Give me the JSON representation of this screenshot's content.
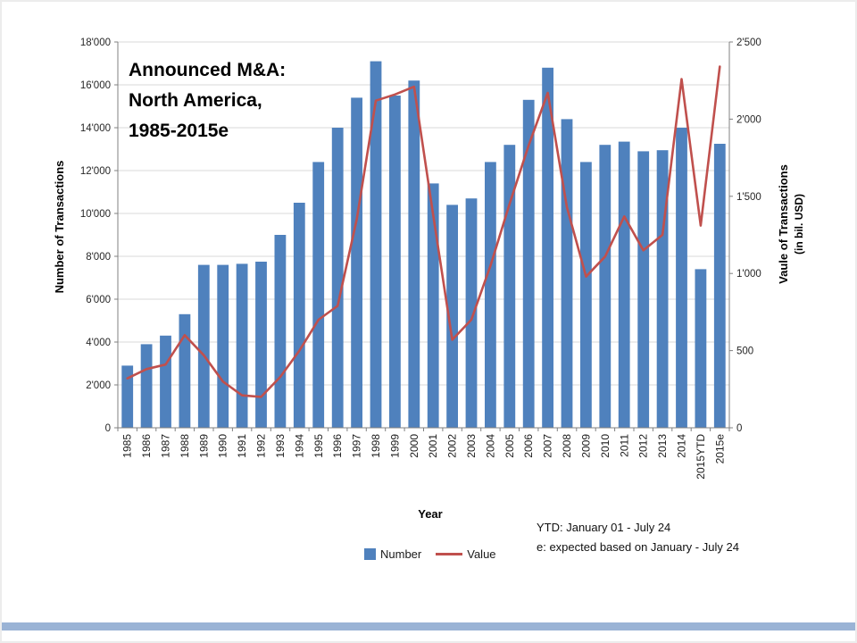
{
  "slide": {
    "background": "#ffffff",
    "accent_color": "#9ab3d5"
  },
  "chart_data": {
    "type": "bar+line combo",
    "title_lines": [
      "Announced M&A:",
      "North America,",
      "1985-2015e"
    ],
    "categories": [
      "1985",
      "1986",
      "1987",
      "1988",
      "1989",
      "1990",
      "1991",
      "1992",
      "1993",
      "1994",
      "1995",
      "1996",
      "1997",
      "1998",
      "1999",
      "2000",
      "2001",
      "2002",
      "2003",
      "2004",
      "2005",
      "2006",
      "2007",
      "2008",
      "2009",
      "2010",
      "2011",
      "2012",
      "2013",
      "2014",
      "2015YTD",
      "2015e"
    ],
    "series": [
      {
        "name": "Number",
        "type": "bar",
        "axis": "left",
        "color": "#4F81BD",
        "values": [
          2900,
          3900,
          4300,
          5300,
          7600,
          7600,
          7650,
          7750,
          9000,
          10500,
          12400,
          14000,
          15400,
          17100,
          15500,
          16200,
          11400,
          10400,
          10700,
          12400,
          13200,
          15300,
          16800,
          14400,
          12400,
          13200,
          13350,
          12900,
          12950,
          14000,
          7400,
          13250
        ]
      },
      {
        "name": "Value",
        "type": "line",
        "axis": "right",
        "color": "#C0504D",
        "values": [
          320,
          380,
          410,
          600,
          470,
          300,
          210,
          200,
          330,
          500,
          700,
          790,
          1350,
          2120,
          2160,
          2210,
          1380,
          570,
          700,
          1050,
          1450,
          1830,
          2170,
          1430,
          980,
          1110,
          1370,
          1150,
          1250,
          2260,
          1310,
          2340
        ]
      }
    ],
    "left_axis": {
      "label": "Number of Transactions",
      "min": 0,
      "max": 18000,
      "step": 2000,
      "tick_labels": [
        "0",
        "2'000",
        "4'000",
        "6'000",
        "8'000",
        "10'000",
        "12'000",
        "14'000",
        "16'000",
        "18'000"
      ]
    },
    "right_axis": {
      "label": "Vaule of Transactions",
      "sublabel": "(in bil. USD)",
      "min": 0,
      "max": 2500,
      "step": 500,
      "tick_labels": [
        "0",
        "500",
        "1'000",
        "1'500",
        "2'000",
        "2'500"
      ]
    },
    "xlabel": "Year",
    "legend": [
      {
        "label": "Number",
        "marker": "square",
        "color": "#4F81BD"
      },
      {
        "label": "Value",
        "marker": "line",
        "color": "#C0504D"
      }
    ],
    "notes": [
      "YTD: January 01 - July 24",
      "e: expected based on January - July 24"
    ],
    "grid": {
      "horizontal": true,
      "color": "#d9d9d9"
    },
    "axis_color": "#808080"
  }
}
